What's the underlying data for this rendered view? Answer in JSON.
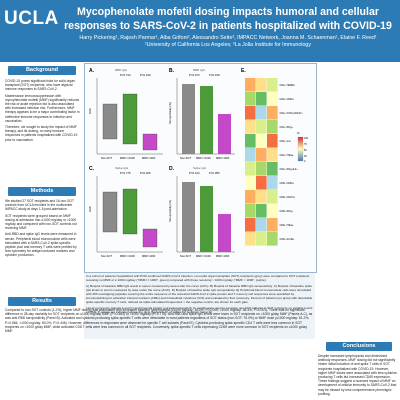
{
  "header": {
    "logo": "UCLA",
    "title": "Mycophenolate mofetil dosing impacts humoral and cellular responses to SARS-CoV-2 in patients hospitalized with COVID-19",
    "authors": "Harry Pickering¹, Rajesh Parmar¹, Alba Grifoni², Alessandro Sette², IMPACC Network, Joanna M. Schaenman¹, Elaine F. Reed¹",
    "affiliations": "¹University of California Los Angeles; ²La Jolla Institute for Immunology"
  },
  "background": {
    "heading": "Background",
    "paragraphs": [
      "COVID-19 poses significant risks for solid organ transplant (SOT) recipients, who have atypical immune responses to SARS-CoV-2.",
      "Maintenance immunosuppression with mycophenolate mofetil (MMF) significantly reduces the risk of acute rejection but is also associated with increased infection risk. Furthermore, MMF therapy appears to be a major contributing factor in ineffective immune responses to infection and vaccination.",
      "Therefore, we sought to study the impact of MMF therapy, and its dosing, on early immune responses in patients hospitalized with COVID-19 prior to vaccination."
    ]
  },
  "methods": {
    "heading": "Methods",
    "paragraphs": [
      "We studied 27 SOT recipients and 16 non-SOT controls from UCLA enrolled in the multicenter IMPACC study at days 1-5 post-admission.",
      "SOT recipients were grouped based on MMF dosing at admission into ≤1000 mg/day or >1000 mg/day and compared with non-SOT controls not receiving MMF.",
      "Anti-RBD and spike IgG levels were measured in serum. Peripheral blood mononuclear cells were stimulated with a SARS-CoV-2 spike-specific peptide pool and memory T cells were profiled by flow cytometry for antigen-induced markers and cytokine production."
    ]
  },
  "results": {
    "heading": "Results",
    "text": "Compared to non-SOT controls (1.2%), higher MMF dosing was associated with increased baseline lymphopenia (≤1000 mg/day: 18.8%; P=0.006; >1000 mg/day: 36.4%, P<0.001). There was no significant difference in 28-day mortality for SOT recipients on ≤1000 mg/day MMF (P=0.463) or >1000 mg/day (P=0.778). Anti-RBD and spike IgG levels were lower in SOT recipients on >1000 g/day MMF (Panels A-C), as was anti-RBD seropositivity (Panel B). Activated and cytokine-producing spike-specific T cells were detectable in most patients regardless of SOT status (non-SOT: 75.0%) or MMF dose (≤1000 mg/day: 81.2%, P=0.584; >1000 mg/day: 80.0%, P=0.446). However, differences in responses were observed for specific T cell subsets (Panel E). Cytokine-producing spike-specific CD4 T cells were less common in SOT recipients on >1000 g/day MMF, while activated CD8 T cells were less common in all SOT recipients. Conversely, spike-specific T cells expressing CD69 were more common in SOT recipients on ≤1000 g/day MMF."
  },
  "conclusions": {
    "heading": "Conclusions",
    "text": "Despite increased lymphopenia and diminished antibody responses, MMF dosing did not significantly hinder initial induction of anti-spike T cells in SOT recipients hospitalized with COVID-19. However, higher MMF doses were associated with less cytokine-producing T cells but increased CD69 expression. These findings suggest a nuanced impact of MMF on development of cellular immunity to SARS-CoV-2 that may be missed by less comprehensive phenotypic profiling."
  },
  "caption": {
    "paragraphs": [
      "In a cohort of patients hospitalized with PCR-confirmed SARS-CoV-2 infection, non-solid organ transplant (SOT) recipients (grey) were compared to SOT recipients receiving no MMF or ≤ 1000 mg/day (\"MMF<= 1000\", green) compared with those receiving > 1000 mg/day (\"MMF > 1000\", purple).",
      "A) Boxplot of baseline RBD IgG levels in serum measured by area under the curve (AUC). B) Boxplot of baseline RBD IgG seropositivity. C) Boxplot of baseline spike IgG levels in serum measured by area under the curve (AUC). D) Boxplot of baseline spike IgG seropositivity. E) Peripheral blood mononuclear cells were stimulated with 253 overlapping peptides covering the entire sequence of the ancestral SARS-CoV-2 spike protein and T memory cell responses were quantified by immunostaining for activation induced markers (AIMs) and intracellular cytokines (ICS) and evaluated by flow cytometry. Percent of patients per group with detectable spike-specific memory T cells, defined as spike-stimulated frequencies > the negative control, are shown for each gate.",
      "Linear regression (panels A and C) and binomial logistic regression (panels B, D, and E) were used to compare non-SOT patients to SOT recipients on variable levels of MMF. P-values are indicated above the plots (panels A-D) or within the heatmap (panel E)."
    ]
  },
  "figure": {
    "panels": [
      {
        "label": "A.",
        "ylabel": "AUC",
        "pvals": [
          "P=0.744",
          "P=0.019"
        ]
      },
      {
        "label": "B.",
        "ylabel": "Seropositivity (%)",
        "pvals": [
          "P=0.073",
          "P=0.018"
        ]
      },
      {
        "label": "C.",
        "ylabel": "AUC",
        "pvals": [
          "P=0.775",
          "P=0.025"
        ]
      },
      {
        "label": "D.",
        "ylabel": "Seropositivity (%)",
        "pvals": [
          "P=0.123",
          "P=0.055"
        ]
      },
      {
        "label": "E.",
        "ylabel": "",
        "pvals": []
      }
    ],
    "group_labels": [
      "Non-SOT",
      "MMF<=1000",
      "MMF>1000"
    ],
    "panel_sublabels": [
      "RBD IgG",
      "RBD IgG",
      "Spike IgG",
      "Spike IgG"
    ],
    "heatmap_rows": [
      "CD4+ TEMRA",
      "CD4+ CD69+",
      "CD4+ OX40+CD137+",
      "CD4+ IFNg+",
      "CD4+ IL2+",
      "CD4+ TNFa+",
      "CD4+ IFNg+IL2+",
      "CD8+ CD69+",
      "CD8+ CD137+",
      "CD8+ IFNg+",
      "CD8+ TNFa+",
      "CD8+ GzmB+"
    ],
    "heatmap_legend_title": "%",
    "heatmap_legend_ticks": [
      "100",
      "75",
      "50",
      "25",
      "0"
    ]
  },
  "colors": {
    "header": "#2d7bb4",
    "nonsot": "#8a8a8a",
    "mmf_low": "#4c9a3a",
    "mmf_high": "#c349c8"
  }
}
